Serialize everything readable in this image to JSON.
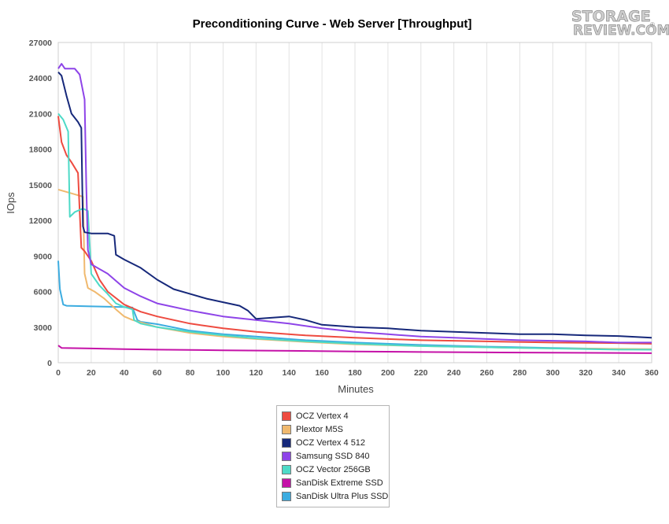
{
  "chart_data": {
    "type": "line",
    "title": "Preconditioning Curve - Web Server [Throughput]",
    "xlabel": "Minutes",
    "ylabel": "IOps",
    "xlim": [
      0,
      360
    ],
    "ylim": [
      0,
      27000
    ],
    "x_ticks": [
      0,
      20,
      40,
      60,
      80,
      100,
      120,
      140,
      160,
      180,
      200,
      220,
      240,
      260,
      280,
      300,
      320,
      340,
      360
    ],
    "y_ticks": [
      0,
      3000,
      6000,
      9000,
      12000,
      15000,
      18000,
      21000,
      24000,
      27000
    ],
    "grid": "vertical",
    "legend_position": "bottom-center",
    "series": [
      {
        "name": "OCZ Vertex 4",
        "color": "#ee4b40",
        "points": [
          [
            0,
            20800
          ],
          [
            2,
            18600
          ],
          [
            5,
            17500
          ],
          [
            8,
            16900
          ],
          [
            12,
            16000
          ],
          [
            14,
            9700
          ],
          [
            16,
            9400
          ],
          [
            20,
            8600
          ],
          [
            25,
            7000
          ],
          [
            30,
            6000
          ],
          [
            40,
            4900
          ],
          [
            50,
            4300
          ],
          [
            60,
            3900
          ],
          [
            80,
            3300
          ],
          [
            100,
            2900
          ],
          [
            120,
            2600
          ],
          [
            150,
            2300
          ],
          [
            180,
            2100
          ],
          [
            220,
            1900
          ],
          [
            260,
            1800
          ],
          [
            300,
            1700
          ],
          [
            340,
            1650
          ],
          [
            360,
            1600
          ]
        ]
      },
      {
        "name": "Plextor M5S",
        "color": "#f0b96e",
        "points": [
          [
            0,
            14600
          ],
          [
            5,
            14400
          ],
          [
            10,
            14200
          ],
          [
            15,
            14000
          ],
          [
            16,
            7500
          ],
          [
            18,
            6300
          ],
          [
            22,
            6000
          ],
          [
            28,
            5400
          ],
          [
            35,
            4500
          ],
          [
            40,
            3900
          ],
          [
            45,
            3600
          ],
          [
            50,
            3400
          ],
          [
            60,
            3000
          ],
          [
            80,
            2500
          ],
          [
            100,
            2200
          ],
          [
            120,
            2000
          ],
          [
            150,
            1750
          ],
          [
            180,
            1550
          ],
          [
            220,
            1400
          ],
          [
            260,
            1300
          ],
          [
            300,
            1200
          ],
          [
            360,
            1150
          ]
        ]
      },
      {
        "name": "OCZ Vertex 4 512",
        "color": "#16287a",
        "points": [
          [
            0,
            24500
          ],
          [
            2,
            24200
          ],
          [
            5,
            22500
          ],
          [
            8,
            21000
          ],
          [
            12,
            20300
          ],
          [
            14,
            19800
          ],
          [
            15,
            11500
          ],
          [
            16,
            11000
          ],
          [
            20,
            10900
          ],
          [
            30,
            10900
          ],
          [
            34,
            10700
          ],
          [
            35,
            9100
          ],
          [
            40,
            8700
          ],
          [
            50,
            8000
          ],
          [
            60,
            7000
          ],
          [
            70,
            6200
          ],
          [
            80,
            5800
          ],
          [
            90,
            5400
          ],
          [
            100,
            5100
          ],
          [
            110,
            4800
          ],
          [
            115,
            4400
          ],
          [
            120,
            3700
          ],
          [
            130,
            3800
          ],
          [
            140,
            3900
          ],
          [
            150,
            3600
          ],
          [
            160,
            3200
          ],
          [
            180,
            3000
          ],
          [
            200,
            2900
          ],
          [
            220,
            2700
          ],
          [
            240,
            2600
          ],
          [
            260,
            2500
          ],
          [
            280,
            2400
          ],
          [
            300,
            2400
          ],
          [
            320,
            2300
          ],
          [
            340,
            2250
          ],
          [
            360,
            2100
          ]
        ]
      },
      {
        "name": "Samsung SSD 840",
        "color": "#8e44e8",
        "points": [
          [
            0,
            24800
          ],
          [
            2,
            25200
          ],
          [
            4,
            24800
          ],
          [
            10,
            24800
          ],
          [
            13,
            24300
          ],
          [
            16,
            22200
          ],
          [
            17,
            15000
          ],
          [
            18,
            9500
          ],
          [
            20,
            8300
          ],
          [
            30,
            7500
          ],
          [
            40,
            6300
          ],
          [
            50,
            5600
          ],
          [
            60,
            5000
          ],
          [
            80,
            4400
          ],
          [
            100,
            3900
          ],
          [
            120,
            3600
          ],
          [
            140,
            3300
          ],
          [
            160,
            2900
          ],
          [
            180,
            2600
          ],
          [
            200,
            2400
          ],
          [
            220,
            2200
          ],
          [
            240,
            2100
          ],
          [
            260,
            2000
          ],
          [
            280,
            1900
          ],
          [
            300,
            1850
          ],
          [
            320,
            1800
          ],
          [
            340,
            1700
          ],
          [
            360,
            1700
          ]
        ]
      },
      {
        "name": "OCZ Vector 256GB",
        "color": "#4ddac7",
        "points": [
          [
            0,
            21000
          ],
          [
            3,
            20500
          ],
          [
            6,
            19500
          ],
          [
            7,
            12300
          ],
          [
            10,
            12700
          ],
          [
            15,
            13000
          ],
          [
            18,
            12800
          ],
          [
            20,
            7500
          ],
          [
            25,
            6500
          ],
          [
            30,
            5800
          ],
          [
            35,
            5000
          ],
          [
            40,
            4700
          ],
          [
            45,
            4500
          ],
          [
            46,
            3600
          ],
          [
            50,
            3300
          ],
          [
            60,
            3000
          ],
          [
            80,
            2600
          ],
          [
            100,
            2300
          ],
          [
            120,
            2050
          ],
          [
            150,
            1800
          ],
          [
            180,
            1600
          ],
          [
            220,
            1400
          ],
          [
            260,
            1300
          ],
          [
            300,
            1200
          ],
          [
            340,
            1100
          ],
          [
            360,
            1100
          ]
        ]
      },
      {
        "name": "SanDisk Extreme SSD",
        "color": "#c512a8",
        "points": [
          [
            0,
            1450
          ],
          [
            2,
            1250
          ],
          [
            20,
            1200
          ],
          [
            40,
            1150
          ],
          [
            60,
            1100
          ],
          [
            100,
            1050
          ],
          [
            140,
            1000
          ],
          [
            180,
            950
          ],
          [
            220,
            900
          ],
          [
            260,
            870
          ],
          [
            300,
            850
          ],
          [
            340,
            820
          ],
          [
            360,
            800
          ]
        ]
      },
      {
        "name": "SanDisk Ultra Plus SSD",
        "color": "#3cace0",
        "points": [
          [
            0,
            8600
          ],
          [
            1,
            6200
          ],
          [
            3,
            4900
          ],
          [
            5,
            4800
          ],
          [
            20,
            4750
          ],
          [
            40,
            4700
          ],
          [
            45,
            4650
          ],
          [
            48,
            3600
          ],
          [
            50,
            3450
          ],
          [
            60,
            3250
          ],
          [
            80,
            2700
          ],
          [
            100,
            2400
          ],
          [
            120,
            2200
          ],
          [
            150,
            1900
          ],
          [
            180,
            1700
          ],
          [
            220,
            1500
          ],
          [
            260,
            1350
          ],
          [
            300,
            1250
          ],
          [
            340,
            1150
          ],
          [
            360,
            1100
          ]
        ]
      }
    ]
  },
  "logo": {
    "line1": "STORAGE",
    "line2": "REVIEW.COM",
    "mark": "®"
  }
}
